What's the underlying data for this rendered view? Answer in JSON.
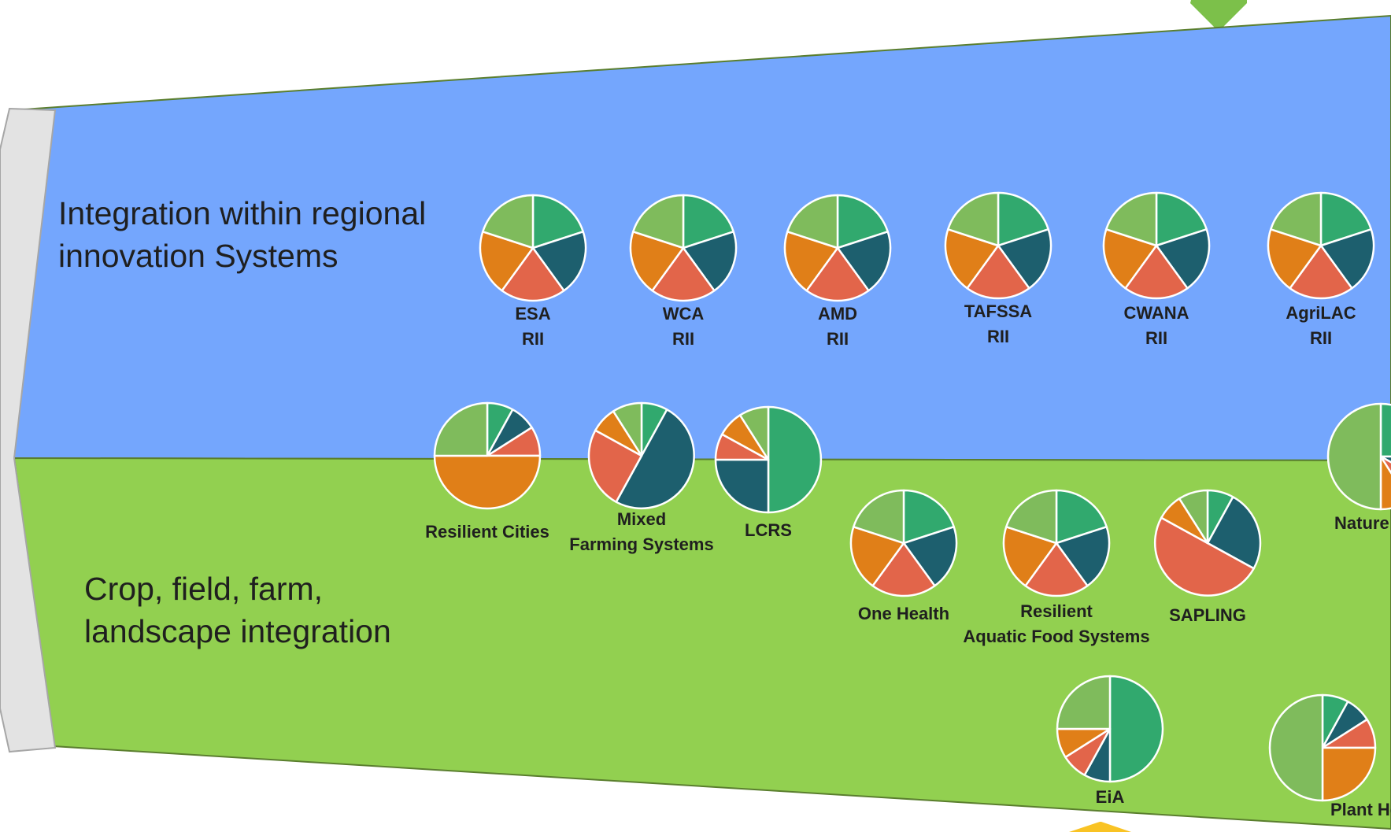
{
  "bands": {
    "regional": {
      "label_lines": [
        "Integration within regional",
        "innovation Systems"
      ],
      "color": "#74a6fd"
    },
    "farm": {
      "label_lines": [
        "Crop, field, farm,",
        "landscape integration"
      ],
      "color": "#92d050"
    }
  },
  "palette": {
    "green": "#31a96e",
    "teal": "#1d5f6e",
    "red": "#e2654a",
    "orange": "#e07f18",
    "light_green": "#7fbb5c",
    "top_arrow": "#7cc04a",
    "bottom_arrow": "#f9c324",
    "left_panel": "#e3e3e3"
  },
  "pie_color_order": [
    "green",
    "teal",
    "red",
    "orange",
    "light_green"
  ],
  "pies": [
    {
      "id": "esa-rii",
      "label_lines": [
        "ESA",
        "RII"
      ],
      "values": [
        20,
        20,
        20,
        20,
        20
      ]
    },
    {
      "id": "wca-rii",
      "label_lines": [
        "WCA",
        "RII"
      ],
      "values": [
        20,
        20,
        20,
        20,
        20
      ]
    },
    {
      "id": "amd-rii",
      "label_lines": [
        "AMD",
        "RII"
      ],
      "values": [
        20,
        20,
        20,
        20,
        20
      ]
    },
    {
      "id": "tafssa-rii",
      "label_lines": [
        "TAFSSA",
        "RII"
      ],
      "values": [
        20,
        20,
        20,
        20,
        20
      ]
    },
    {
      "id": "cwana-rii",
      "label_lines": [
        "CWANA",
        "RII"
      ],
      "values": [
        20,
        20,
        20,
        20,
        20
      ]
    },
    {
      "id": "agrilac-rii",
      "label_lines": [
        "AgriLAC",
        "RII"
      ],
      "values": [
        20,
        20,
        20,
        20,
        20
      ]
    },
    {
      "id": "resilient-cities",
      "label_lines": [
        "Resilient Cities"
      ],
      "values": [
        8,
        8,
        9,
        50,
        25
      ]
    },
    {
      "id": "mixed-farming-systems",
      "label_lines": [
        "Mixed",
        "Farming Systems"
      ],
      "values": [
        8,
        50,
        25,
        8,
        9
      ]
    },
    {
      "id": "lcrs",
      "label_lines": [
        "LCRS"
      ],
      "values": [
        50,
        25,
        8,
        8,
        9
      ]
    },
    {
      "id": "nature-positive",
      "label_lines": [
        "Nature Positive"
      ],
      "values": [
        25,
        8,
        8,
        9,
        50
      ]
    },
    {
      "id": "one-health",
      "label_lines": [
        "One Health"
      ],
      "values": [
        20,
        20,
        20,
        20,
        20
      ]
    },
    {
      "id": "resilient-aquatic-food-systems",
      "label_lines": [
        "Resilient",
        "Aquatic Food Systems"
      ],
      "values": [
        20,
        20,
        20,
        20,
        20
      ]
    },
    {
      "id": "sapling",
      "label_lines": [
        "SAPLING"
      ],
      "values": [
        8,
        25,
        50,
        8,
        9
      ]
    },
    {
      "id": "eia",
      "label_lines": [
        "EiA"
      ],
      "values": [
        50,
        8,
        8,
        9,
        25
      ]
    },
    {
      "id": "plant-health",
      "label_lines": [
        "Plant Health"
      ],
      "values": [
        8,
        8,
        9,
        25,
        50
      ]
    }
  ]
}
